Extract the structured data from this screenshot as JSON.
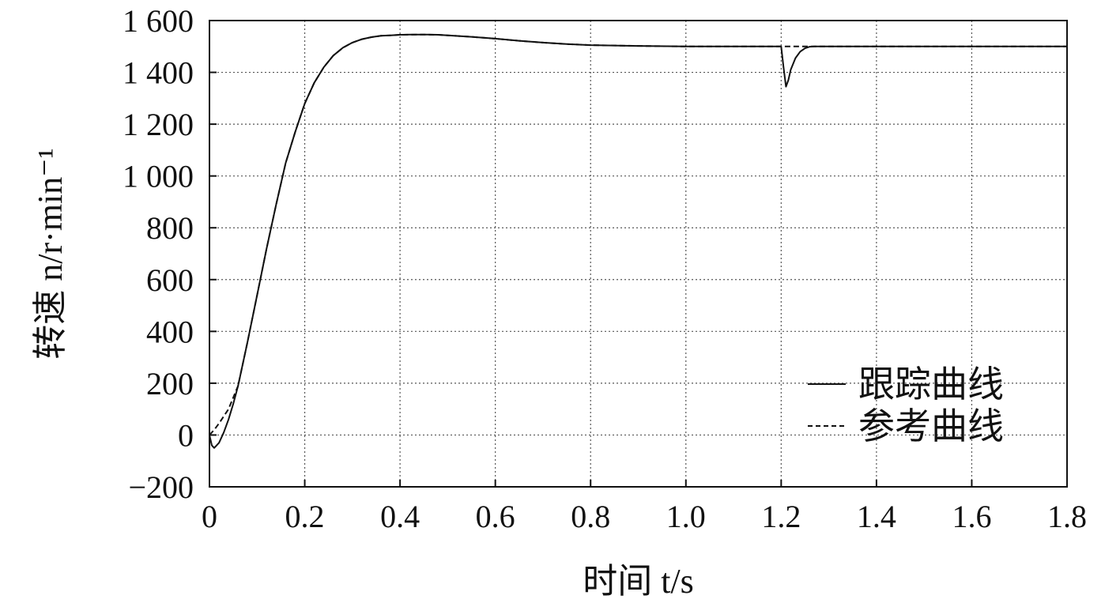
{
  "chart_data": {
    "type": "line",
    "xlabel": "时间 t/s",
    "ylabel": "转速 n/r·min⁻¹",
    "xlim": [
      0,
      1.8
    ],
    "ylim": [
      -200,
      1600
    ],
    "grid": true,
    "legend_position": "right",
    "x_ticks": [
      "0",
      "0.2",
      "0.4",
      "0.6",
      "0.8",
      "1.0",
      "1.2",
      "1.4",
      "1.6",
      "1.8"
    ],
    "y_ticks": [
      "−200",
      "0",
      "200",
      "400",
      "600",
      "800",
      "1 000",
      "1 200",
      "1 400",
      "1 600"
    ],
    "series": [
      {
        "name": "跟踪曲线",
        "style": "solid",
        "x": [
          0,
          0.005,
          0.01,
          0.02,
          0.03,
          0.04,
          0.05,
          0.06,
          0.08,
          0.1,
          0.12,
          0.14,
          0.16,
          0.18,
          0.2,
          0.22,
          0.24,
          0.26,
          0.28,
          0.3,
          0.32,
          0.34,
          0.36,
          0.38,
          0.4,
          0.42,
          0.44,
          0.46,
          0.48,
          0.5,
          0.55,
          0.6,
          0.65,
          0.7,
          0.75,
          0.8,
          0.9,
          1.0,
          1.1,
          1.2,
          1.205,
          1.21,
          1.215,
          1.22,
          1.23,
          1.24,
          1.25,
          1.26,
          1.27,
          1.3,
          1.4,
          1.5,
          1.6,
          1.7,
          1.8
        ],
        "y": [
          0,
          -40,
          -50,
          -30,
          10,
          60,
          120,
          190,
          360,
          540,
          720,
          890,
          1050,
          1170,
          1280,
          1360,
          1420,
          1465,
          1495,
          1515,
          1528,
          1536,
          1541,
          1543,
          1545,
          1546,
          1546,
          1546,
          1545,
          1543,
          1537,
          1530,
          1522,
          1515,
          1509,
          1505,
          1502,
          1500,
          1500,
          1500,
          1420,
          1345,
          1370,
          1410,
          1455,
          1480,
          1493,
          1499,
          1500,
          1500,
          1500,
          1500,
          1500,
          1500,
          1500
        ]
      },
      {
        "name": "参考曲线",
        "style": "dashed",
        "x": [
          0,
          0.01,
          0.02,
          0.04,
          0.06,
          0.08,
          0.1,
          0.12,
          0.14,
          0.16,
          0.18,
          0.2,
          0.22,
          0.24,
          0.26,
          0.28,
          0.3,
          0.32,
          0.34,
          0.36,
          0.38,
          0.4,
          0.44,
          0.48,
          0.5,
          0.55,
          0.6,
          0.65,
          0.7,
          0.75,
          0.8,
          0.9,
          1.0,
          1.1,
          1.2,
          1.3,
          1.4,
          1.5,
          1.6,
          1.7,
          1.8
        ],
        "y": [
          0,
          20,
          45,
          100,
          190,
          360,
          540,
          720,
          890,
          1050,
          1170,
          1280,
          1360,
          1420,
          1465,
          1495,
          1515,
          1528,
          1536,
          1541,
          1543,
          1545,
          1546,
          1545,
          1543,
          1537,
          1530,
          1522,
          1515,
          1509,
          1505,
          1502,
          1500,
          1500,
          1500,
          1500,
          1500,
          1500,
          1500,
          1500,
          1500
        ]
      }
    ]
  }
}
